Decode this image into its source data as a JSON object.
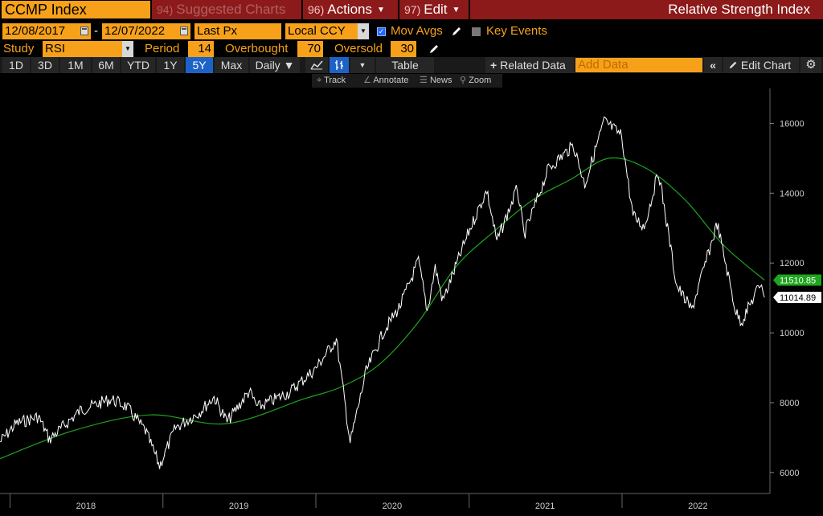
{
  "window": {
    "ticker": "CCMP Index",
    "menu": {
      "suggested_num": "94)",
      "suggested_label": "Suggested Charts",
      "actions_num": "96)",
      "actions_label": "Actions",
      "edit_num": "97)",
      "edit_label": "Edit",
      "study_title": "Relative Strength Index"
    }
  },
  "settings": {
    "start_date": "12/08/2017",
    "date_separator": "-",
    "end_date": "12/07/2022",
    "price_field": "Last Px",
    "currency": "Local CCY",
    "mov_avgs_label": "Mov Avgs",
    "mov_avgs_checked": true,
    "key_events_label": "Key Events",
    "key_events_checked": false
  },
  "study": {
    "label": "Study",
    "value": "RSI",
    "period_label": "Period",
    "period_value": "14",
    "overbought_label": "Overbought",
    "overbought_value": "70",
    "oversold_label": "Oversold",
    "oversold_value": "30"
  },
  "toolbar": {
    "ranges": [
      "1D",
      "3D",
      "1M",
      "6M",
      "YTD",
      "1Y",
      "5Y",
      "Max"
    ],
    "active_range": "5Y",
    "frequency": "Daily",
    "table_label": "Table",
    "related_data_label": "Related Data",
    "add_data_placeholder": "Add Data",
    "edit_chart_label": "Edit Chart"
  },
  "chart_tools": {
    "track": "Track",
    "annotate": "Annotate",
    "news": "News",
    "zoom": "Zoom"
  },
  "colors": {
    "accent_orange": "#f7a11a",
    "menu_red": "#8c1a1a",
    "price_line": "#ffffff",
    "moving_average": "#1fa51f",
    "active_blue": "#1d63c7"
  },
  "chart_data": {
    "type": "line",
    "x_labels": [
      "2018",
      "2019",
      "2020",
      "2021",
      "2022"
    ],
    "y_ticks": [
      6000,
      8000,
      10000,
      12000,
      14000,
      16000
    ],
    "ylim": [
      5400,
      17000
    ],
    "grid": false,
    "last_price_label": "11014.89",
    "ma_label": "11510.85",
    "series": [
      {
        "role": "price",
        "x": [
          "2017-12-08",
          "2018-01-15",
          "2018-03-10",
          "2018-04-05",
          "2018-06-20",
          "2018-08-30",
          "2018-10-05",
          "2018-11-20",
          "2018-12-24",
          "2019-01-31",
          "2019-03-29",
          "2019-05-03",
          "2019-06-03",
          "2019-07-26",
          "2019-08-15",
          "2019-10-30",
          "2019-12-31",
          "2020-02-19",
          "2020-03-23",
          "2020-04-30",
          "2020-06-10",
          "2020-07-20",
          "2020-09-02",
          "2020-09-23",
          "2020-10-12",
          "2020-10-30",
          "2020-12-31",
          "2021-02-12",
          "2021-03-08",
          "2021-04-26",
          "2021-05-12",
          "2021-07-09",
          "2021-09-07",
          "2021-10-04",
          "2021-11-19",
          "2021-12-31",
          "2022-01-27",
          "2022-02-23",
          "2022-03-29",
          "2022-05-11",
          "2022-06-16",
          "2022-07-29",
          "2022-08-16",
          "2022-09-30",
          "2022-10-13",
          "2022-11-30",
          "2022-12-07"
        ],
        "values": [
          6875,
          7400,
          7600,
          6950,
          7800,
          8100,
          7900,
          7200,
          6190,
          7280,
          7730,
          8160,
          7450,
          8330,
          7860,
          8300,
          8970,
          9820,
          6860,
          8890,
          10020,
          10770,
          12060,
          10630,
          11880,
          10910,
          12890,
          14090,
          12610,
          14140,
          12800,
          14700,
          15370,
          14250,
          16060,
          15650,
          13350,
          13030,
          14620,
          11360,
          10650,
          12390,
          13130,
          10580,
          10320,
          11470,
          11014.89
        ]
      },
      {
        "role": "moving_average",
        "x": [
          "2017-12-08",
          "2018-06-01",
          "2018-12-01",
          "2019-06-01",
          "2019-12-01",
          "2020-03-01",
          "2020-06-01",
          "2020-09-01",
          "2020-12-01",
          "2021-03-01",
          "2021-06-01",
          "2021-09-01",
          "2021-12-01",
          "2022-03-01",
          "2022-06-01",
          "2022-09-01",
          "2022-12-07"
        ],
        "values": [
          6400,
          7200,
          7650,
          7400,
          8100,
          8450,
          9100,
          10300,
          11900,
          12900,
          13800,
          14400,
          15000,
          14700,
          13800,
          12500,
          11510.85
        ]
      }
    ]
  }
}
